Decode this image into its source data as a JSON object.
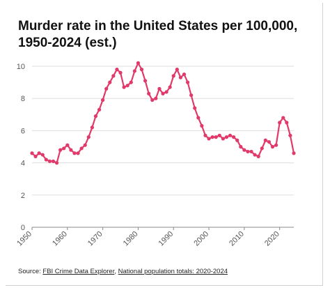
{
  "title_lines": [
    "Murder rate in the United States per 100,000,",
    "1950-2024 (est.)"
  ],
  "source": {
    "prefix": "Source: ",
    "link1": "FBI Crime Data Explorer",
    "separator": ", ",
    "link2": "National population totals: 2020-2024"
  },
  "colors": {
    "series": "#e0396a",
    "grid": "#dddddd",
    "axis": "#888888",
    "tick_label": "#555555"
  },
  "chart_data": {
    "type": "line",
    "title": "Murder rate in the United States per 100,000, 1950-2024 (est.)",
    "xlabel": "",
    "ylabel": "",
    "xlim": [
      1950,
      2024
    ],
    "ylim": [
      0,
      10
    ],
    "x_ticks": [
      1950,
      1960,
      1970,
      1980,
      1990,
      2000,
      2010,
      2020
    ],
    "y_ticks": [
      0,
      2,
      4,
      6,
      8,
      10
    ],
    "grid": true,
    "legend": "none",
    "series": [
      {
        "x": [
          1950,
          1951,
          1952,
          1953,
          1954,
          1955,
          1956,
          1957,
          1958,
          1959,
          1960,
          1961,
          1962,
          1963,
          1964,
          1965,
          1966,
          1967,
          1968,
          1969,
          1970,
          1971,
          1972,
          1973,
          1974,
          1975,
          1976,
          1977,
          1978,
          1979,
          1980,
          1981,
          1982,
          1983,
          1984,
          1985,
          1986,
          1987,
          1988,
          1989,
          1990,
          1991,
          1992,
          1993,
          1994,
          1995,
          1996,
          1997,
          1998,
          1999,
          2000,
          2001,
          2002,
          2003,
          2004,
          2005,
          2006,
          2007,
          2008,
          2009,
          2010,
          2011,
          2012,
          2013,
          2014,
          2015,
          2016,
          2017,
          2018,
          2019,
          2020,
          2021,
          2022,
          2023,
          2024
        ],
        "values": [
          4.6,
          4.4,
          4.6,
          4.5,
          4.2,
          4.1,
          4.1,
          4.0,
          4.8,
          4.9,
          5.1,
          4.8,
          4.6,
          4.6,
          4.9,
          5.1,
          5.6,
          6.2,
          6.9,
          7.3,
          7.9,
          8.6,
          9.0,
          9.4,
          9.8,
          9.6,
          8.7,
          8.8,
          9.0,
          9.7,
          10.2,
          9.8,
          9.1,
          8.3,
          7.9,
          8.0,
          8.6,
          8.3,
          8.4,
          8.7,
          9.4,
          9.8,
          9.3,
          9.5,
          9.0,
          8.2,
          7.4,
          6.8,
          6.3,
          5.7,
          5.5,
          5.6,
          5.6,
          5.7,
          5.5,
          5.6,
          5.7,
          5.6,
          5.4,
          5.0,
          4.8,
          4.7,
          4.7,
          4.5,
          4.4,
          4.9,
          5.4,
          5.3,
          5.0,
          5.1,
          6.5,
          6.8,
          6.5,
          5.7,
          4.6
        ]
      }
    ]
  }
}
